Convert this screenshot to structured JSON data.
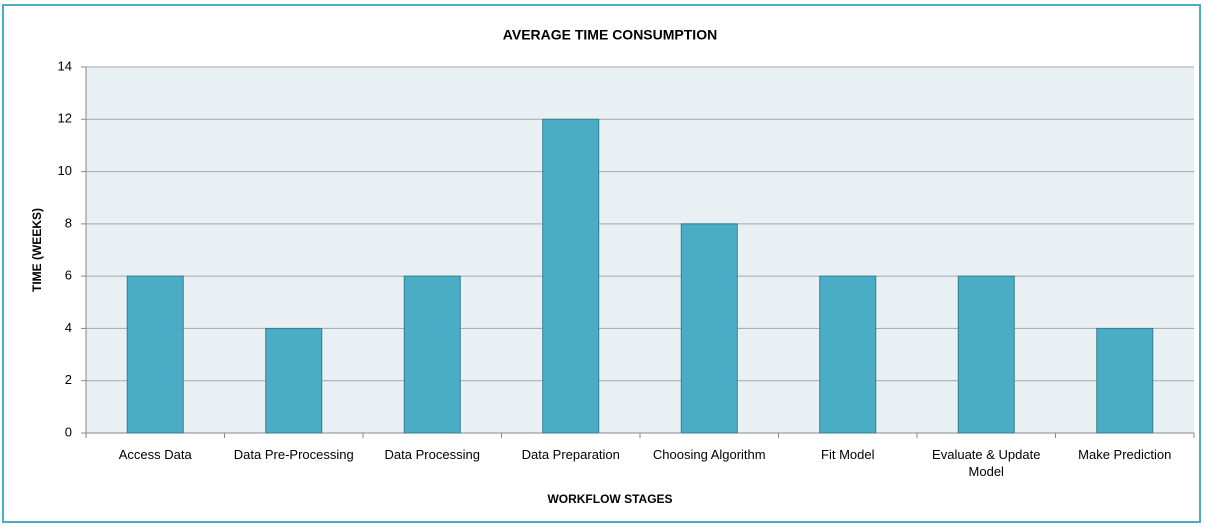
{
  "chart_data": {
    "type": "bar",
    "title": "AVERAGE TIME CONSUMPTION",
    "x_label": "WORKFLOW STAGES",
    "y_label": "TIME (WEEKS)",
    "categories": [
      "Access Data",
      "Data Pre-Processing",
      "Data Processing",
      "Data Preparation",
      "Choosing Algorithm",
      "Fit Model",
      "Evaluate & Update Model",
      "Make Prediction"
    ],
    "values": [
      6,
      4,
      6,
      12,
      8,
      6,
      6,
      4
    ],
    "color": "#4bacc6",
    "ylim": [
      0,
      14
    ],
    "yticks": [
      0,
      2,
      4,
      6,
      8,
      10,
      12,
      14
    ],
    "grid": true
  }
}
